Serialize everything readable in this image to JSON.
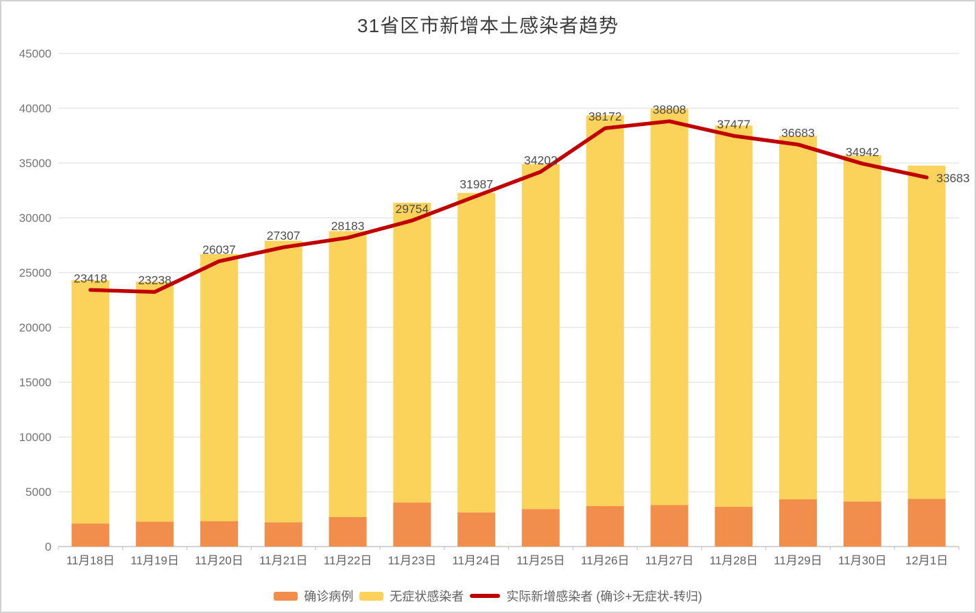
{
  "title": "31省区市新增本土感染者趋势",
  "colors": {
    "confirmed_bar": "#F28E4B",
    "asymptomatic_bar": "#FBD35B",
    "trend_line": "#C00000",
    "gridline": "#D9D9D9",
    "axis_line": "#C6C6C6",
    "axis_text": "#757575",
    "data_label_text": "#4d4d4d",
    "title_text": "#3d3d3d",
    "legend_text": "#616161",
    "frame_border": "#d2d2d2"
  },
  "chart_data": {
    "type": "bar",
    "subtype": "stacked-bars-with-line-overlay",
    "title": "31省区市新增本土感染者趋势",
    "xlabel": "",
    "ylabel": "",
    "categories": [
      "11月18日",
      "11月19日",
      "11月20日",
      "11月21日",
      "11月22日",
      "11月23日",
      "11月24日",
      "11月25日",
      "11月26日",
      "11月27日",
      "11月28日",
      "11月29日",
      "11月30日",
      "12月1日"
    ],
    "series": [
      {
        "name": "确诊病例",
        "type": "bar",
        "stack": "total",
        "color": "#F28E4B",
        "values": [
          2100,
          2270,
          2310,
          2210,
          2690,
          4020,
          3110,
          3420,
          3690,
          3790,
          3630,
          4310,
          4110,
          4360
        ]
      },
      {
        "name": "无症状感染者",
        "type": "bar",
        "stack": "total",
        "color": "#FBD35B",
        "values": [
          22200,
          21900,
          24380,
          25690,
          26100,
          27360,
          29160,
          31480,
          35670,
          36160,
          34790,
          33170,
          31600,
          30410
        ]
      },
      {
        "name": "实际新增感染者 (确诊+无症状-转归)",
        "type": "line",
        "color": "#C00000",
        "values": [
          23418,
          23238,
          26037,
          27307,
          28183,
          29754,
          31987,
          34202,
          38172,
          38808,
          37477,
          36683,
          34942,
          33683
        ],
        "data_labels": [
          "23418",
          "23238",
          "26037",
          "27307",
          "28183",
          "29754",
          "31987",
          "34202",
          "38172",
          "38808",
          "37477",
          "36683",
          "34942",
          "33683"
        ]
      }
    ],
    "ylim": [
      0,
      45000
    ],
    "ytick_interval": 5000,
    "ytick_labels": [
      "0",
      "5000",
      "10000",
      "15000",
      "20000",
      "25000",
      "30000",
      "35000",
      "40000",
      "45000"
    ],
    "grid": "horizontal",
    "legend_position": "bottom"
  }
}
